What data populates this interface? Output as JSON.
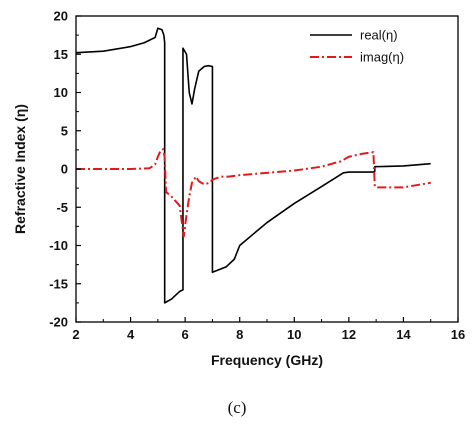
{
  "chart_data": {
    "type": "line",
    "title": "",
    "xlabel": "Frequency (GHz)",
    "ylabel": "Refractive Index (η)",
    "xlim": [
      2,
      16
    ],
    "ylim": [
      -20,
      20
    ],
    "xticks": [
      2,
      4,
      6,
      8,
      10,
      12,
      14,
      16
    ],
    "yticks": [
      -20,
      -15,
      -10,
      -5,
      0,
      5,
      10,
      15,
      20
    ],
    "grid": false,
    "legend_position": "top-right",
    "series": [
      {
        "name": "real(η)",
        "color": "#000000",
        "style": "solid",
        "x": [
          2.0,
          3.0,
          4.0,
          4.5,
          4.9,
          5.0,
          5.15,
          5.22,
          5.25,
          5.25,
          5.5,
          5.8,
          5.92,
          5.92,
          6.05,
          6.15,
          6.25,
          6.35,
          6.5,
          6.7,
          6.85,
          7.0,
          7.0,
          7.5,
          7.8,
          8.0,
          9.0,
          10.0,
          11.0,
          11.8,
          12.0,
          12.9,
          12.95,
          12.95,
          14.0,
          15.0
        ],
        "y": [
          15.2,
          15.4,
          16.0,
          16.5,
          17.2,
          18.4,
          18.2,
          17.5,
          16.5,
          -17.5,
          -17.0,
          -16.0,
          -15.8,
          15.8,
          15.0,
          10.0,
          8.5,
          10.5,
          12.8,
          13.4,
          13.5,
          13.4,
          -13.5,
          -12.8,
          -11.8,
          -10.0,
          -7.0,
          -4.5,
          -2.3,
          -0.5,
          -0.4,
          -0.4,
          -0.3,
          0.3,
          0.4,
          0.7
        ]
      },
      {
        "name": "imag(η)",
        "color": "#e31a1c",
        "style": "dashdot",
        "x": [
          2.0,
          3.0,
          4.0,
          4.7,
          4.9,
          5.0,
          5.1,
          5.2,
          5.25,
          5.3,
          5.5,
          5.8,
          5.95,
          6.05,
          6.15,
          6.25,
          6.4,
          6.5,
          6.7,
          6.9,
          7.0,
          7.3,
          7.6,
          8.0,
          9.0,
          10.0,
          11.0,
          11.7,
          12.0,
          12.5,
          12.9,
          12.95,
          13.05,
          14.0,
          15.0
        ],
        "y": [
          0.0,
          0.0,
          0.0,
          0.1,
          0.6,
          1.6,
          2.4,
          2.6,
          1.5,
          -3.0,
          -3.6,
          -4.8,
          -8.8,
          -6.0,
          -3.6,
          -1.8,
          -1.0,
          -1.6,
          -2.0,
          -1.8,
          -1.4,
          -1.0,
          -1.0,
          -0.8,
          -0.5,
          -0.2,
          0.3,
          1.0,
          1.6,
          2.0,
          2.2,
          -2.3,
          -2.4,
          -2.4,
          -1.8
        ]
      }
    ]
  },
  "caption": "(c)"
}
